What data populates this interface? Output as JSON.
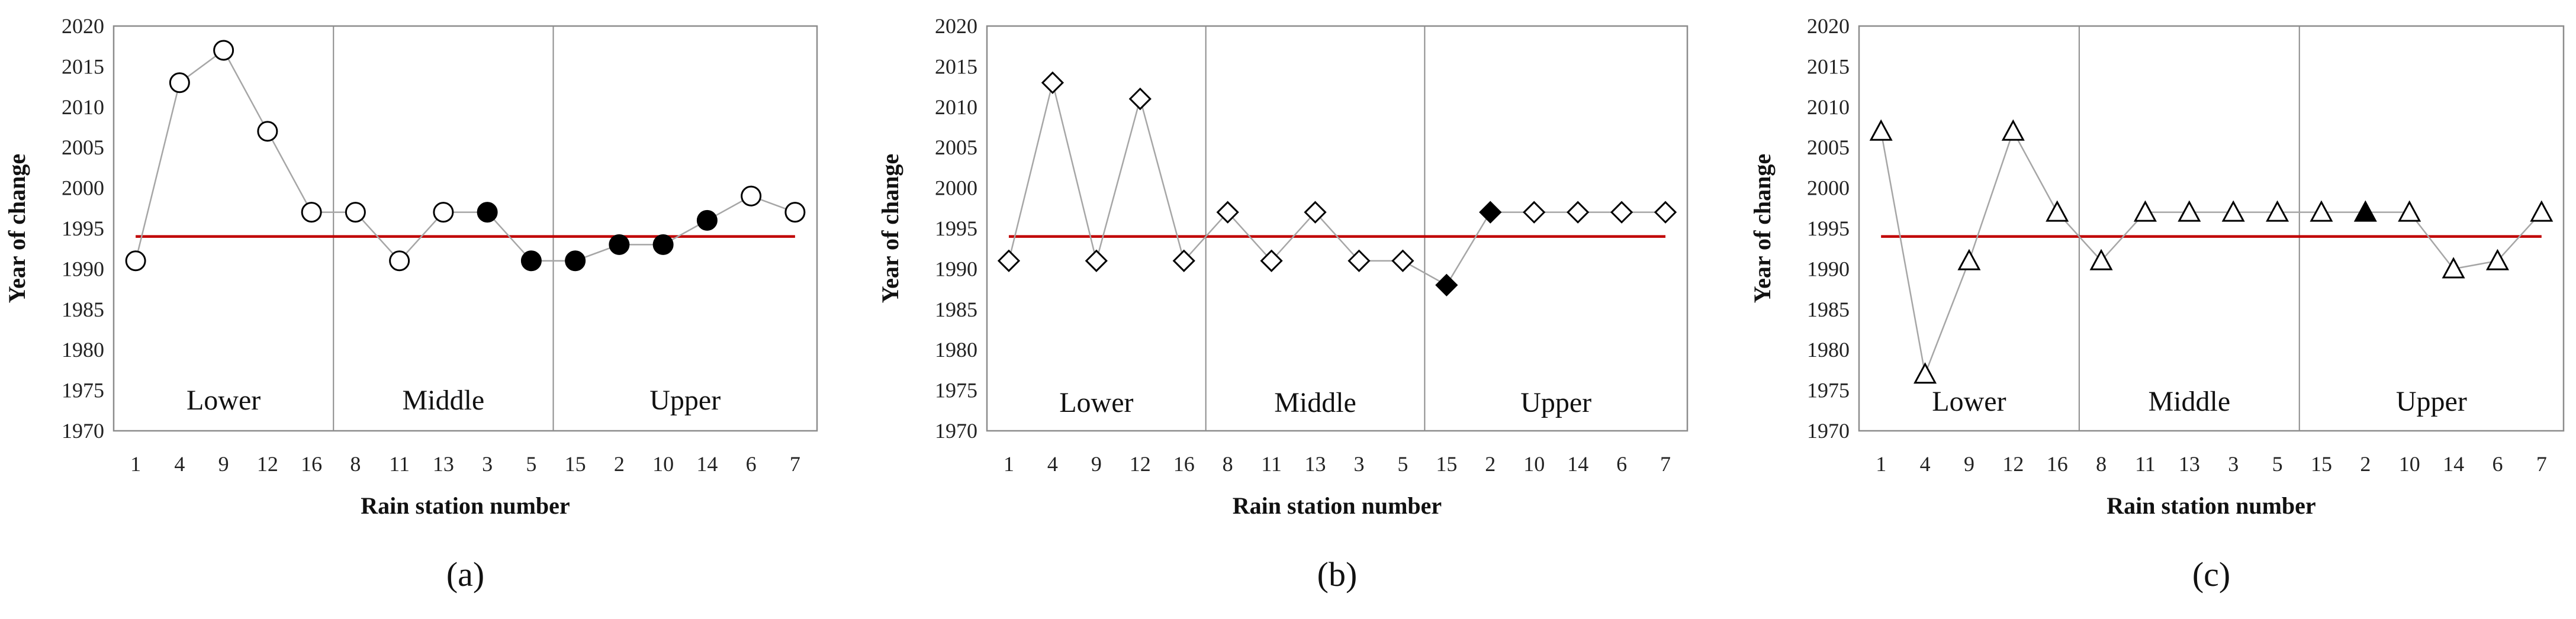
{
  "chart_data": [
    {
      "type": "line",
      "panel_label": "(a)",
      "xlabel": "Rain station number",
      "ylabel": "Year of change",
      "ylim": [
        1970,
        2020
      ],
      "yticks": [
        1970,
        1975,
        1980,
        1985,
        1990,
        1995,
        2000,
        2005,
        2010,
        2015,
        2020
      ],
      "categories": [
        "1",
        "4",
        "9",
        "12",
        "16",
        "8",
        "11",
        "13",
        "3",
        "5",
        "15",
        "2",
        "10",
        "14",
        "6",
        "7"
      ],
      "marker": "circle",
      "series": [
        {
          "values": [
            1991,
            2013,
            2017,
            2007,
            1997,
            1997,
            1991,
            1997,
            1997,
            1991,
            1991,
            1993,
            1993,
            1996,
            1999,
            1997
          ],
          "filled": [
            false,
            false,
            false,
            false,
            false,
            false,
            false,
            false,
            true,
            true,
            true,
            true,
            true,
            true,
            false,
            false
          ]
        }
      ],
      "reference_line": 1994,
      "regions": [
        {
          "label": "Lower",
          "categories": [
            "1",
            "4",
            "9",
            "12",
            "16"
          ]
        },
        {
          "label": "Middle",
          "categories": [
            "8",
            "11",
            "13",
            "3",
            "5"
          ]
        },
        {
          "label": "Upper",
          "categories": [
            "15",
            "2",
            "10",
            "14",
            "6",
            "7"
          ]
        }
      ],
      "grid": false
    },
    {
      "type": "line",
      "panel_label": "(b)",
      "xlabel": "Rain station number",
      "ylabel": "Year of change",
      "ylim": [
        1970,
        2020
      ],
      "yticks": [
        1970,
        1975,
        1980,
        1985,
        1990,
        1995,
        2000,
        2005,
        2010,
        2015,
        2020
      ],
      "categories": [
        "1",
        "4",
        "9",
        "12",
        "16",
        "8",
        "11",
        "13",
        "3",
        "5",
        "15",
        "2",
        "10",
        "14",
        "6",
        "7"
      ],
      "marker": "diamond",
      "series": [
        {
          "values": [
            1991,
            2013,
            1991,
            2011,
            1991,
            1997,
            1991,
            1997,
            1991,
            1991,
            1988,
            1997,
            1997,
            1997,
            1997,
            1997
          ],
          "filled": [
            false,
            false,
            false,
            false,
            false,
            false,
            false,
            false,
            false,
            false,
            true,
            true,
            false,
            false,
            false,
            false
          ]
        }
      ],
      "reference_line": 1994,
      "regions": [
        {
          "label": "Lower",
          "categories": [
            "1",
            "4",
            "9",
            "12",
            "16"
          ]
        },
        {
          "label": "Middle",
          "categories": [
            "8",
            "11",
            "13",
            "3",
            "5"
          ]
        },
        {
          "label": "Upper",
          "categories": [
            "15",
            "2",
            "10",
            "14",
            "6",
            "7"
          ]
        }
      ],
      "grid": false
    },
    {
      "type": "line",
      "panel_label": "(c)",
      "xlabel": "Rain station number",
      "ylabel": "Year of change",
      "ylim": [
        1970,
        2020
      ],
      "yticks": [
        1970,
        1975,
        1980,
        1985,
        1990,
        1995,
        2000,
        2005,
        2010,
        2015,
        2020
      ],
      "categories": [
        "1",
        "4",
        "9",
        "12",
        "16",
        "8",
        "11",
        "13",
        "3",
        "5",
        "15",
        "2",
        "10",
        "14",
        "6",
        "7"
      ],
      "marker": "triangle",
      "series": [
        {
          "values": [
            2007,
            1977,
            1991,
            2007,
            1997,
            1991,
            1997,
            1997,
            1997,
            1997,
            1997,
            1997,
            1997,
            1990,
            1991,
            1997
          ],
          "filled": [
            false,
            false,
            false,
            false,
            false,
            false,
            false,
            false,
            false,
            false,
            false,
            true,
            false,
            false,
            false,
            false
          ]
        }
      ],
      "reference_line": 1994,
      "regions": [
        {
          "label": "Lower",
          "categories": [
            "1",
            "4",
            "9",
            "12",
            "16"
          ]
        },
        {
          "label": "Middle",
          "categories": [
            "8",
            "11",
            "13",
            "3",
            "5"
          ]
        },
        {
          "label": "Upper",
          "categories": [
            "15",
            "2",
            "10",
            "14",
            "6",
            "7"
          ]
        }
      ],
      "grid": false
    }
  ],
  "colors": {
    "reference_line": "#c00000",
    "connector": "#a6a6a6",
    "frame": "#8c8c8c",
    "marker_stroke": "#000000"
  }
}
